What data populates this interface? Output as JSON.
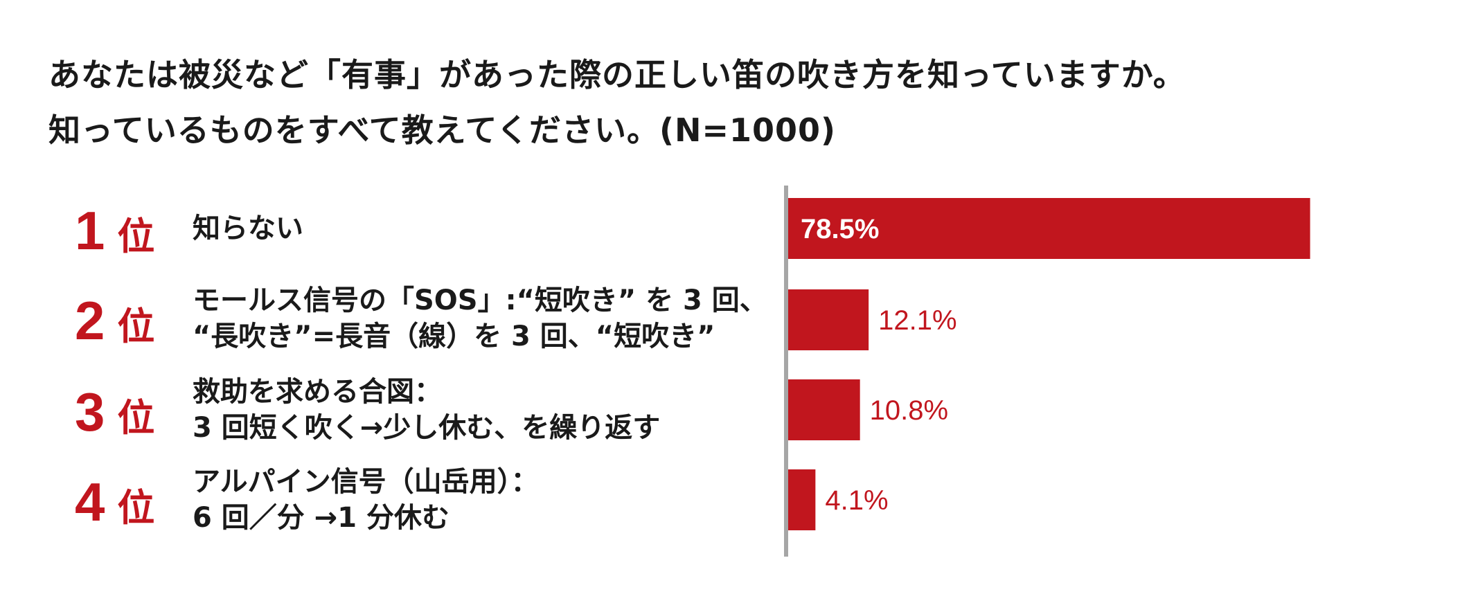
{
  "title": {
    "line1": "あなたは被災など「有事」があった際の正しい笛の吹き方を知っていますか。",
    "line2": "知っているものをすべて教えてください。(N=1000)"
  },
  "colors": {
    "bar": "#c1161e",
    "rank": "#c1161e",
    "axis": "#a6a6a6",
    "bar_label_inside": "#ffffff",
    "bar_label_outside": "#c1161e"
  },
  "items": [
    {
      "rank_num": "1",
      "rank_suffix": "位",
      "lines": [
        "知らない"
      ]
    },
    {
      "rank_num": "2",
      "rank_suffix": "位",
      "lines": [
        "モールス信号の「SOS」:“短吹き” を 3 回、",
        "“長吹き”=長音（線）を 3 回、“短吹き”"
      ]
    },
    {
      "rank_num": "3",
      "rank_suffix": "位",
      "lines": [
        "救助を求める合図：",
        "3 回短く吹く→少し休む、を繰り返す"
      ]
    },
    {
      "rank_num": "4",
      "rank_suffix": "位",
      "lines": [
        "アルパイン信号（山岳用）：",
        "6 回／分 →1 分休む"
      ]
    }
  ],
  "chart_data": {
    "type": "bar",
    "orientation": "horizontal",
    "categories": [
      "知らない",
      "モールス信号の「SOS」:“短吹き” を 3 回、“長吹き”=長音（線）を 3 回、“短吹き”",
      "救助を求める合図：3 回短く吹く→少し休む、を繰り返す",
      "アルパイン信号（山岳用）：6 回／分 →1 分休む"
    ],
    "values": [
      78.5,
      12.1,
      10.8,
      4.1
    ],
    "value_labels": [
      "78.5%",
      "12.1%",
      "10.8%",
      "4.1%"
    ],
    "unit": "%",
    "xlim": [
      0,
      100
    ],
    "grid": false,
    "legend": "none"
  }
}
